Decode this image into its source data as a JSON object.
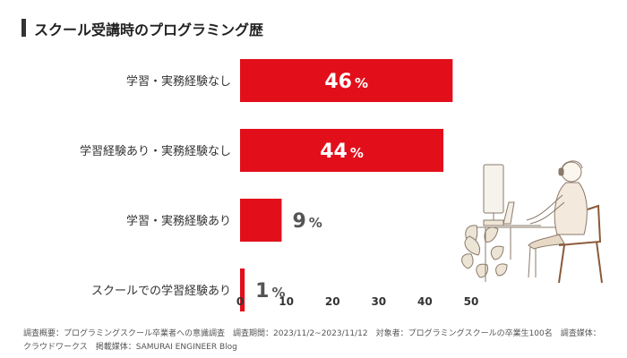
{
  "title": "スクール受講時のプログラミング歴",
  "colors": {
    "bar": "#e20f1b",
    "label": "#333333",
    "value_outside": "#555555"
  },
  "chart_data": {
    "type": "bar",
    "orientation": "horizontal",
    "categories": [
      "学習・実務経験なし",
      "学習経験あり・実務経験なし",
      "学習・実務経験あり",
      "スクールでの学習経験あり"
    ],
    "values": [
      46,
      44,
      9,
      1
    ],
    "value_unit": "%",
    "xlim": [
      0,
      50
    ],
    "xticks": [
      0,
      10,
      20,
      30,
      40,
      50
    ],
    "grid": false
  },
  "footnote": {
    "line1": "調査概要：プログラミングスクール卒業者への意識調査　調査期間：2023/11/2~2023/11/12　対象者：プログラミングスクールの卒業生100名　調査媒体：",
    "line2": "クラウドワークス　掲載媒体：SAMURAI ENGINEER Blog"
  },
  "illustration": {
    "icon": "person-at-computer-illustration"
  }
}
